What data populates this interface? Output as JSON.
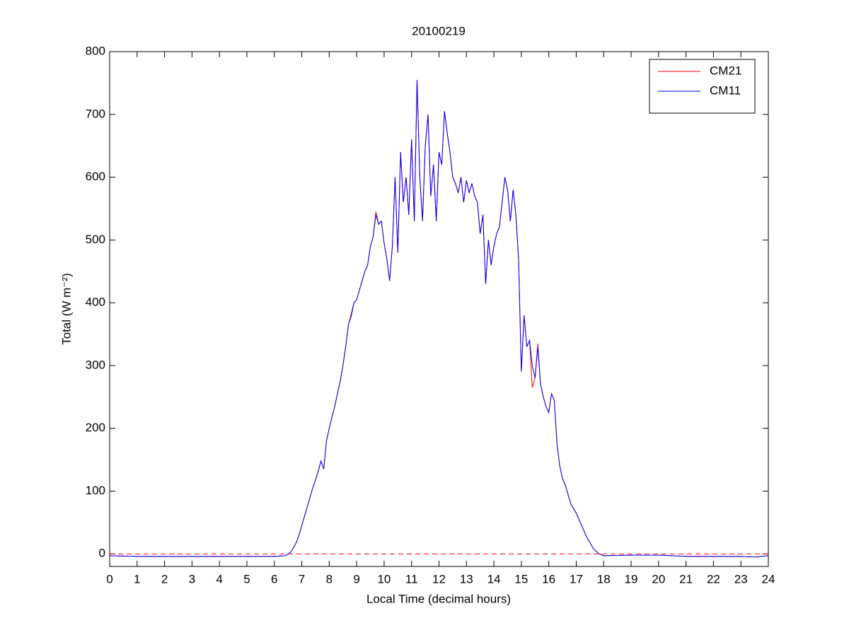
{
  "chart_data": {
    "type": "line",
    "title": "20100219",
    "x_label": "Local Time (decimal hours)",
    "y_label": "Total (W m⁻²)",
    "x": [
      0,
      1,
      2,
      3,
      4,
      5,
      6,
      6.4,
      6.5,
      6.6,
      6.7,
      6.8,
      6.9,
      7.0,
      7.1,
      7.2,
      7.3,
      7.4,
      7.5,
      7.6,
      7.7,
      7.8,
      7.9,
      8.0,
      8.1,
      8.2,
      8.3,
      8.4,
      8.5,
      8.6,
      8.7,
      8.8,
      8.9,
      9.0,
      9.1,
      9.2,
      9.3,
      9.4,
      9.5,
      9.6,
      9.7,
      9.8,
      9.9,
      10.0,
      10.1,
      10.2,
      10.3,
      10.4,
      10.5,
      10.6,
      10.7,
      10.8,
      10.9,
      11.0,
      11.1,
      11.2,
      11.3,
      11.4,
      11.5,
      11.6,
      11.7,
      11.8,
      11.9,
      12.0,
      12.1,
      12.2,
      12.3,
      12.4,
      12.5,
      12.6,
      12.7,
      12.8,
      12.9,
      13.0,
      13.1,
      13.2,
      13.3,
      13.4,
      13.5,
      13.6,
      13.7,
      13.8,
      13.9,
      14.0,
      14.1,
      14.2,
      14.3,
      14.4,
      14.5,
      14.6,
      14.7,
      14.8,
      14.9,
      15.0,
      15.1,
      15.2,
      15.3,
      15.4,
      15.5,
      15.6,
      15.7,
      15.8,
      15.9,
      16.0,
      16.1,
      16.2,
      16.3,
      16.4,
      16.5,
      16.6,
      16.7,
      16.8,
      16.9,
      17.0,
      17.1,
      17.2,
      17.3,
      17.4,
      17.5,
      17.6,
      17.7,
      17.8,
      17.9,
      18.0,
      19,
      20,
      21,
      22,
      23,
      23.5,
      24
    ],
    "series": [
      {
        "name": "CM21",
        "color": "#ff0000",
        "values": [
          -3,
          -4,
          -4,
          -4,
          -4,
          -4,
          -4,
          -3,
          0,
          3,
          10,
          18,
          30,
          45,
          60,
          75,
          90,
          105,
          118,
          132,
          148,
          135,
          180,
          200,
          218,
          235,
          255,
          275,
          300,
          330,
          365,
          382,
          400,
          405,
          420,
          435,
          450,
          460,
          490,
          505,
          545,
          525,
          530,
          495,
          470,
          435,
          490,
          600,
          480,
          640,
          560,
          600,
          540,
          660,
          530,
          755,
          600,
          530,
          650,
          700,
          570,
          620,
          530,
          640,
          620,
          705,
          670,
          640,
          600,
          590,
          575,
          600,
          560,
          595,
          575,
          590,
          570,
          560,
          510,
          540,
          430,
          500,
          460,
          490,
          510,
          520,
          560,
          600,
          580,
          530,
          580,
          540,
          470,
          290,
          380,
          330,
          340,
          265,
          280,
          335,
          270,
          250,
          235,
          225,
          255,
          245,
          175,
          140,
          120,
          110,
          95,
          80,
          72,
          65,
          55,
          45,
          35,
          25,
          18,
          10,
          5,
          1,
          -1,
          -3,
          -2,
          -2,
          -4,
          -4,
          -4,
          -5,
          -3
        ]
      },
      {
        "name": "CM11",
        "color": "#0000ff",
        "values": [
          -3,
          -4,
          -4,
          -4,
          -4,
          -4,
          -4,
          -3,
          0,
          3,
          10,
          18,
          30,
          45,
          60,
          75,
          90,
          105,
          118,
          132,
          148,
          135,
          180,
          200,
          218,
          235,
          255,
          275,
          300,
          330,
          365,
          378,
          400,
          405,
          420,
          435,
          450,
          460,
          490,
          505,
          540,
          525,
          530,
          495,
          470,
          435,
          490,
          600,
          480,
          640,
          560,
          600,
          540,
          660,
          530,
          755,
          600,
          530,
          650,
          700,
          570,
          620,
          530,
          640,
          620,
          705,
          670,
          640,
          600,
          590,
          575,
          600,
          560,
          595,
          575,
          590,
          570,
          560,
          510,
          540,
          430,
          500,
          460,
          490,
          510,
          520,
          560,
          600,
          580,
          530,
          580,
          540,
          470,
          290,
          380,
          330,
          340,
          300,
          280,
          330,
          270,
          250,
          235,
          225,
          255,
          245,
          175,
          140,
          120,
          110,
          95,
          80,
          72,
          65,
          55,
          45,
          35,
          25,
          18,
          10,
          5,
          1,
          -1,
          -3,
          -2,
          -2,
          -4,
          -4,
          -4,
          -5,
          -3
        ]
      }
    ],
    "reference_lines": [
      {
        "value": 0,
        "color": "#ff0000",
        "dashed": true
      }
    ],
    "xlim": [
      0,
      24
    ],
    "xticks": [
      0,
      1,
      2,
      3,
      4,
      5,
      6,
      7,
      8,
      9,
      10,
      11,
      12,
      13,
      14,
      15,
      16,
      17,
      18,
      19,
      20,
      21,
      22,
      23,
      24
    ],
    "ylim": [
      -20,
      800
    ],
    "yticks": [
      0,
      100,
      200,
      300,
      400,
      500,
      600,
      700,
      800
    ],
    "grid": false,
    "legend": "upper right"
  }
}
